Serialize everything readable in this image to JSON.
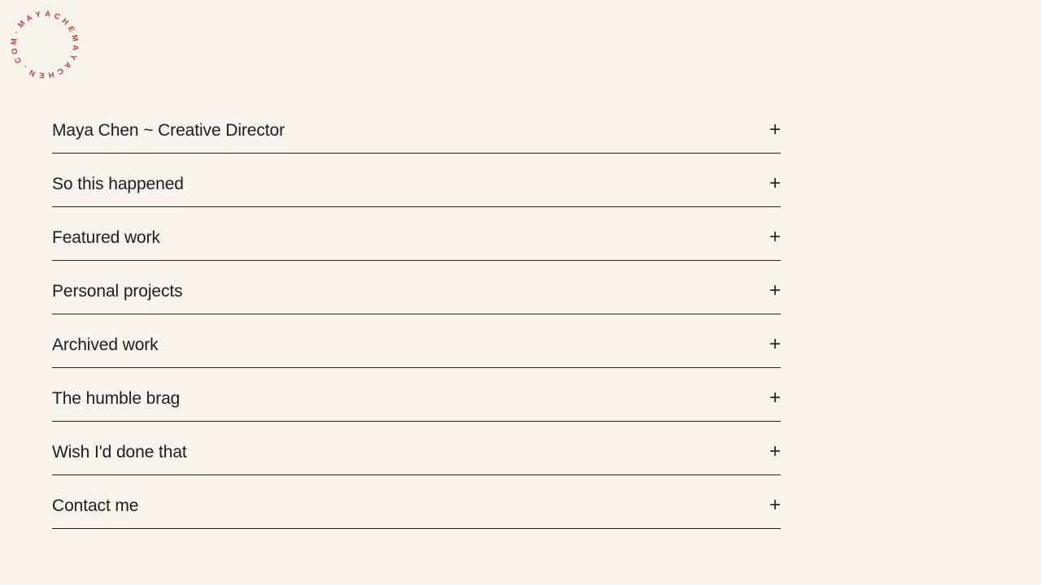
{
  "logo": {
    "circular_text": "MAYACHEMAYACHEN.COM·",
    "color": "#c53a31"
  },
  "accordion": {
    "items": [
      {
        "label": "Maya Chen ~ Creative Director",
        "toggle": "+"
      },
      {
        "label": "So this happened",
        "toggle": "+"
      },
      {
        "label": "Featured work",
        "toggle": "+"
      },
      {
        "label": "Personal projects",
        "toggle": "+"
      },
      {
        "label": "Archived work",
        "toggle": "+"
      },
      {
        "label": "The humble brag",
        "toggle": "+"
      },
      {
        "label": "Wish I'd done that",
        "toggle": "+"
      },
      {
        "label": "Contact me",
        "toggle": "+"
      }
    ]
  },
  "colors": {
    "background": "#f6f4ed",
    "text": "#1f1d1a",
    "divider": "#26241f",
    "accent_red": "#c53a31"
  }
}
